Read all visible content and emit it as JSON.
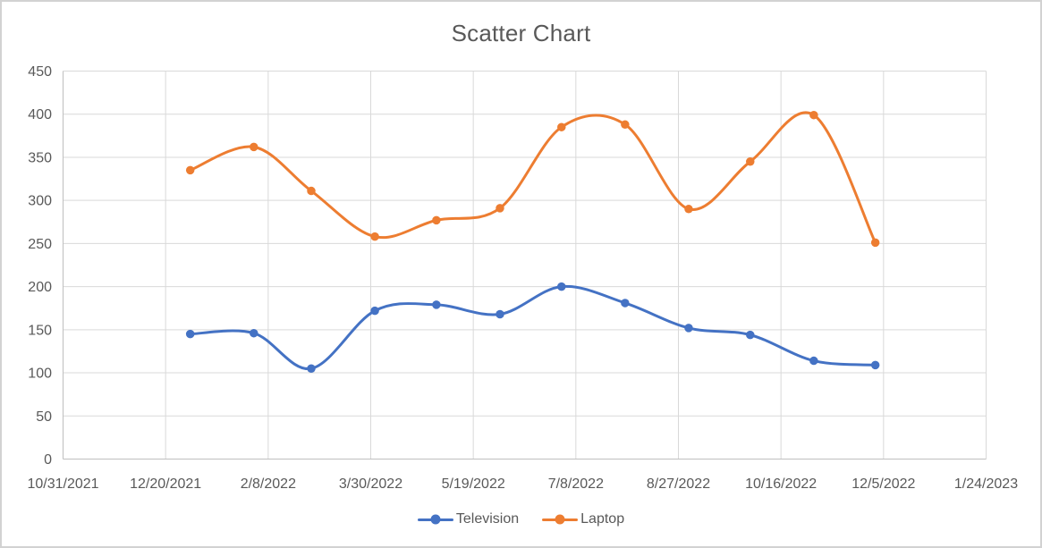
{
  "chart_data": {
    "type": "scatter",
    "subtype": "smooth-lines-with-markers",
    "title": "Scatter Chart",
    "x": [
      "1/1/2022",
      "2/1/2022",
      "3/1/2022",
      "4/1/2022",
      "5/1/2022",
      "6/1/2022",
      "7/1/2022",
      "8/1/2022",
      "9/1/2022",
      "10/1/2022",
      "11/1/2022",
      "12/1/2022"
    ],
    "series": [
      {
        "name": "Television",
        "color": "#4472C4",
        "values": [
          145,
          146,
          105,
          172,
          179,
          168,
          200,
          181,
          152,
          144,
          114,
          109
        ]
      },
      {
        "name": "Laptop",
        "color": "#ED7D31",
        "values": [
          335,
          362,
          311,
          258,
          277,
          291,
          385,
          388,
          290,
          345,
          399,
          251
        ]
      }
    ],
    "x_axis": {
      "start": "10/31/2021",
      "end": "1/24/2023",
      "tick_interval_days": 50,
      "tick_labels": [
        "10/31/2021",
        "12/20/2021",
        "2/8/2022",
        "3/30/2022",
        "5/19/2022",
        "7/8/2022",
        "8/27/2022",
        "10/16/2022",
        "12/5/2022",
        "1/24/2023"
      ]
    },
    "y_axis": {
      "min": 0,
      "max": 450,
      "tick_interval": 50,
      "tick_labels": [
        "0",
        "50",
        "100",
        "150",
        "200",
        "250",
        "300",
        "350",
        "400",
        "450"
      ]
    },
    "grid": true,
    "legend_position": "bottom"
  },
  "legend": {
    "items": [
      {
        "label": "Television",
        "color": "#4472C4"
      },
      {
        "label": "Laptop",
        "color": "#ED7D31"
      }
    ]
  },
  "colors": {
    "text": "#595959",
    "gridline": "#D9D9D9",
    "axis_line": "#BFBFBF",
    "background": "#FFFFFF",
    "frame_border": "#D2D2D2"
  }
}
